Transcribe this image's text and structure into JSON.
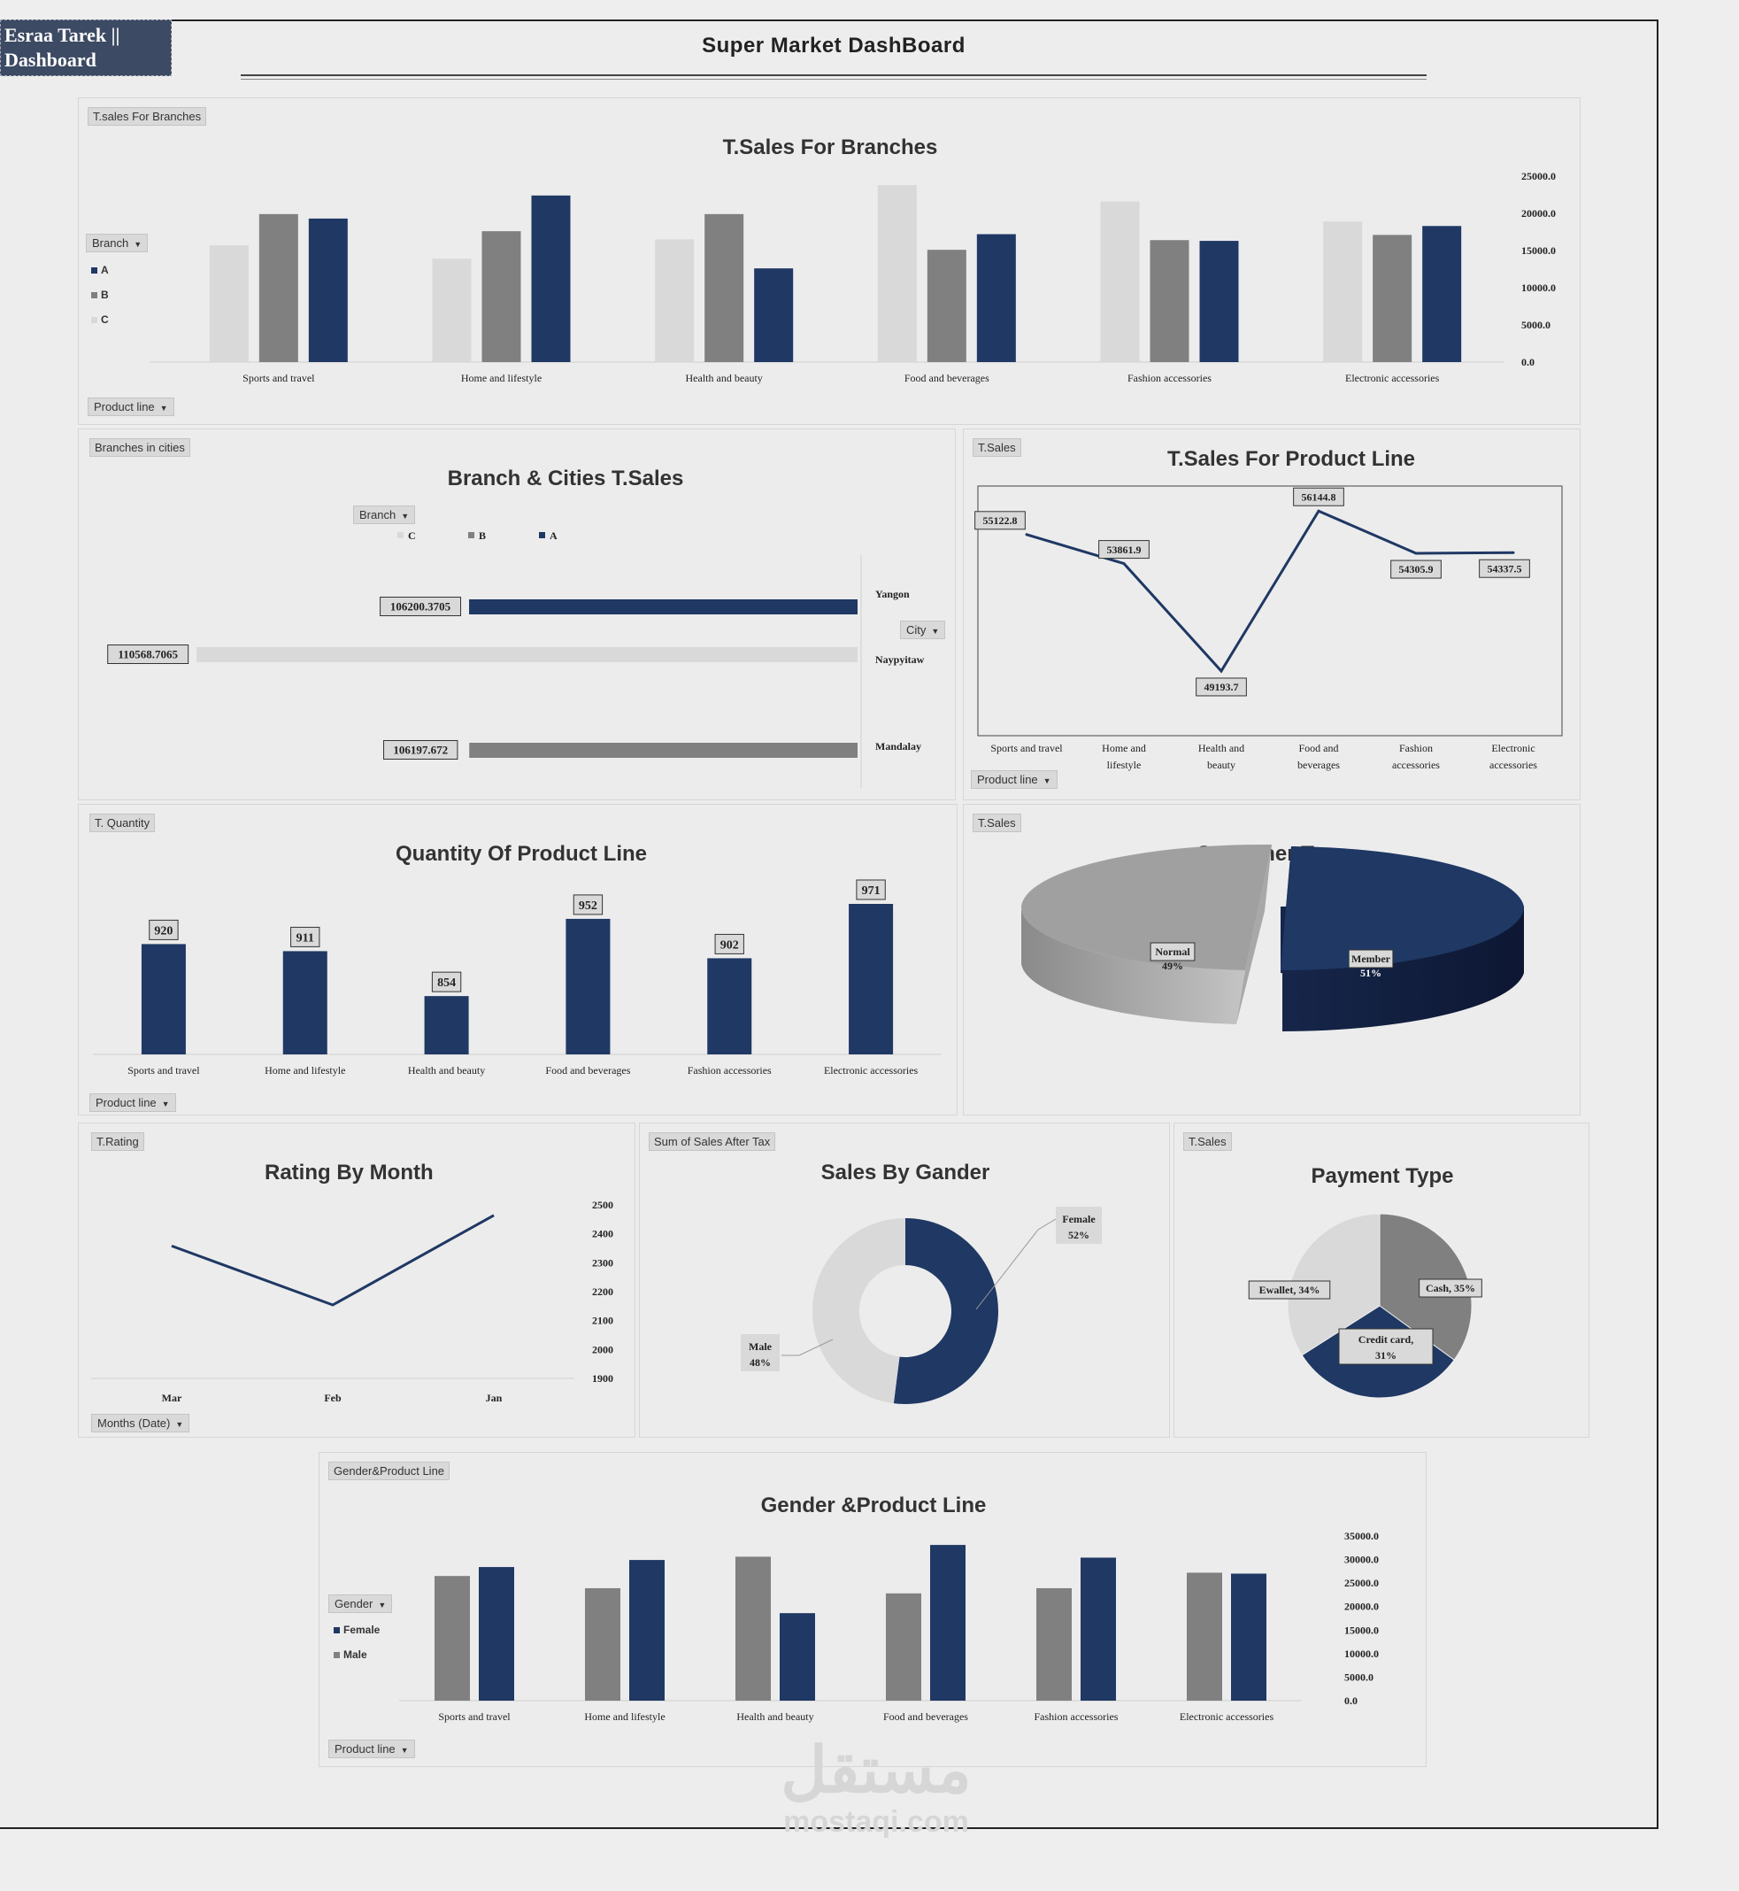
{
  "header": {
    "author": "Esraa Tarek || Dashboard",
    "title": "Super Market DashBoard"
  },
  "colors": {
    "A": "#1f3864",
    "B": "#808080",
    "C": "#d9d9d9",
    "navy": "#1f3864"
  },
  "branches_panel": {
    "tag": "T.sales For Branches",
    "title": "T.Sales For Branches",
    "filter_branch": "Branch",
    "filter_product": "Product line",
    "legend": [
      "A",
      "B",
      "C"
    ],
    "chart_data": {
      "type": "bar",
      "categories": [
        "Sports and travel",
        "Home and lifestyle",
        "Health and beauty",
        "Food and beverages",
        "Fashion accessories",
        "Electronic accessories"
      ],
      "series": [
        {
          "name": "C",
          "values": [
            15700,
            13900,
            16500,
            23800,
            21600,
            18900
          ]
        },
        {
          "name": "B",
          "values": [
            19900,
            17600,
            19900,
            15100,
            16400,
            17100
          ]
        },
        {
          "name": "A",
          "values": [
            19300,
            22400,
            12600,
            17200,
            16300,
            18300
          ]
        }
      ],
      "yticks": [
        "25000.0",
        "20000.0",
        "15000.0",
        "10000.0",
        "5000.0",
        "0.0"
      ],
      "ylim": [
        0,
        25000
      ]
    }
  },
  "cities_panel": {
    "tag": "Branches  in cities",
    "title": "Branch & Cities T.Sales",
    "filter_branch": "Branch",
    "filter_city": "City",
    "legend": [
      "C",
      "B",
      "A"
    ],
    "chart_data": {
      "type": "bar",
      "categories": [
        "Yangon",
        "Naypyitaw",
        "Mandalay"
      ],
      "values": [
        106200.3705,
        110568.7065,
        106197.672
      ],
      "labels": [
        "106200.3705",
        "110568.7065",
        "106197.672"
      ],
      "branches": [
        "A",
        "C",
        "B"
      ]
    }
  },
  "productline_panel": {
    "tag": "T.Sales",
    "title": "T.Sales For Product Line",
    "filter": "Product  line",
    "chart_data": {
      "type": "line",
      "categories": [
        "Sports and travel",
        "Home and lifestyle",
        "Health and beauty",
        "Food and beverages",
        "Fashion accessories",
        "Electronic accessories"
      ],
      "values": [
        55122.8,
        53861.9,
        49193.7,
        56144.8,
        54305.9,
        54337.5
      ],
      "labels": [
        "55122.8",
        "53861.9",
        "49193.7",
        "56144.8",
        "54305.9",
        "54337.5"
      ]
    }
  },
  "quantity_panel": {
    "tag": "T. Quantity",
    "title": "Quantity Of Product Line",
    "filter": "Product  line",
    "chart_data": {
      "type": "bar",
      "categories": [
        "Sports and travel",
        "Home and lifestyle",
        "Health and beauty",
        "Food and beverages",
        "Fashion accessories",
        "Electronic accessories"
      ],
      "values": [
        920,
        911,
        854,
        952,
        902,
        971
      ]
    }
  },
  "customer_panel": {
    "tag": "T.Sales",
    "title": "Customer Type",
    "chart_data": {
      "type": "pie",
      "labels": [
        "Normal",
        "Member"
      ],
      "values": [
        49,
        51
      ],
      "percent_labels": [
        "49%",
        "51%"
      ]
    }
  },
  "rating_panel": {
    "tag": "T.Rating",
    "title": "Rating By Month",
    "filter": "Months (Date)",
    "chart_data": {
      "type": "line",
      "categories": [
        "Mar",
        "Feb",
        "Jan"
      ],
      "values": [
        2358,
        2154,
        2464
      ],
      "yticks": [
        "2500",
        "2400",
        "2300",
        "2200",
        "2100",
        "2000",
        "1900"
      ],
      "ylim": [
        1900,
        2500
      ]
    }
  },
  "gender_panel": {
    "tag": "Sum of Sales After Tax",
    "title": "Sales By Gander",
    "chart_data": {
      "type": "pie",
      "labels": [
        "Female",
        "Male"
      ],
      "values": [
        52,
        48
      ],
      "percent_labels": [
        "52%",
        "48%"
      ]
    }
  },
  "payment_panel": {
    "tag": "T.Sales",
    "title": "Payment Type",
    "chart_data": {
      "type": "pie",
      "labels": [
        "Cash, 35%",
        "Credit card, 31%",
        "Ewallet, 34%"
      ],
      "values": [
        35,
        31,
        34
      ]
    }
  },
  "genderline_panel": {
    "tag": "Gender&Product  Line",
    "title": "Gender &Product Line",
    "filter_gender": "Gender",
    "filter_product": "Product line",
    "legend": [
      "Female",
      "Male"
    ],
    "chart_data": {
      "type": "bar",
      "categories": [
        "Sports and travel",
        "Home and lifestyle",
        "Health and beauty",
        "Food and beverages",
        "Fashion accessories",
        "Electronic accessories"
      ],
      "series": [
        {
          "name": "Male",
          "values": [
            26500,
            23900,
            30600,
            22800,
            23900,
            27200
          ]
        },
        {
          "name": "Female",
          "values": [
            28400,
            29900,
            18600,
            33100,
            30400,
            27000
          ]
        }
      ],
      "yticks": [
        "35000.0",
        "30000.0",
        "25000.0",
        "20000.0",
        "15000.0",
        "10000.0",
        "5000.0",
        "0.0"
      ],
      "ylim": [
        0,
        35000
      ]
    }
  },
  "watermark": {
    "arabic": "مستقل",
    "latin": "mostaqi.com"
  }
}
